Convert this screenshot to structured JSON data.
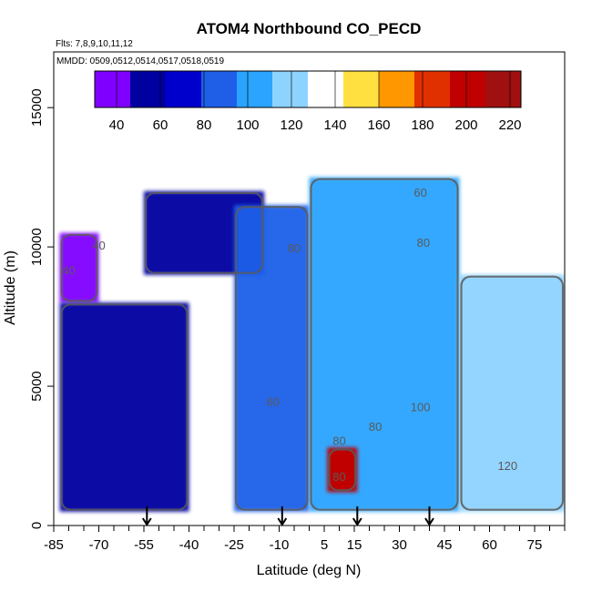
{
  "chart_data": {
    "type": "heatmap",
    "title": "ATOM4 Northbound CO_PECD",
    "flights_note": "Flts: 7,8,9,10,11,12",
    "dates_note": "MMDD: 0509,0512,0514,0517,0518,0519",
    "xlabel": "Latitude (deg N)",
    "ylabel": "Altitude (m)",
    "xlim": [
      -85,
      85
    ],
    "ylim": [
      0,
      17000
    ],
    "x_ticks": [
      -85,
      -70,
      -55,
      -40,
      -25,
      -10,
      5,
      15,
      30,
      45,
      60,
      75
    ],
    "x_minor_tick_step": 5,
    "y_ticks": [
      0,
      5000,
      10000,
      15000
    ],
    "colorbar": {
      "min": 30,
      "max": 225,
      "ticks": [
        40,
        60,
        80,
        100,
        120,
        140,
        160,
        180,
        200,
        220
      ],
      "colors": [
        "#8000ff",
        "#0000a0",
        "#0000cc",
        "#1f5fe8",
        "#2aa4ff",
        "#8ed3ff",
        "#ffffff",
        "#ffe040",
        "#ff9800",
        "#e03000",
        "#c00000",
        "#a01010"
      ]
    },
    "contour_levels": [
      40,
      60,
      80,
      100,
      120,
      140,
      160,
      180
    ],
    "contour_labels": [
      {
        "text": "40",
        "x": -70,
        "y": 9900
      },
      {
        "text": "40",
        "x": -80,
        "y": 9000
      },
      {
        "text": "60",
        "x": -12,
        "y": 4300
      },
      {
        "text": "60",
        "x": 37,
        "y": 11800
      },
      {
        "text": "80",
        "x": -5,
        "y": 9800
      },
      {
        "text": "80",
        "x": 10,
        "y": 2900
      },
      {
        "text": "80",
        "x": 38,
        "y": 10000
      },
      {
        "text": "80",
        "x": 10,
        "y": 1600
      },
      {
        "text": "80",
        "x": 22,
        "y": 3400
      },
      {
        "text": "100",
        "x": 37,
        "y": 4100
      },
      {
        "text": "120",
        "x": 66,
        "y": 2000
      }
    ],
    "region_values": [
      {
        "lat": [
          -83,
          -70
        ],
        "alt": [
          8000,
          10500
        ],
        "value": 38
      },
      {
        "lat": [
          -83,
          -40
        ],
        "alt": [
          500,
          8000
        ],
        "value": 55
      },
      {
        "lat": [
          -55,
          -15
        ],
        "alt": [
          9000,
          12000
        ],
        "value": 62
      },
      {
        "lat": [
          -25,
          0
        ],
        "alt": [
          500,
          11500
        ],
        "value": 80
      },
      {
        "lat": [
          0,
          50
        ],
        "alt": [
          500,
          12500
        ],
        "value": 95
      },
      {
        "lat": [
          50,
          85
        ],
        "alt": [
          500,
          9000
        ],
        "value": 120
      },
      {
        "lat": [
          6,
          16
        ],
        "alt": [
          1200,
          2800
        ],
        "value": 200
      }
    ],
    "markers": [
      {
        "label": "arrow",
        "lat": -54
      },
      {
        "label": "arrow",
        "lat": -9
      },
      {
        "label": "arrow",
        "lat": 16
      },
      {
        "label": "arrow",
        "lat": 40
      }
    ]
  }
}
